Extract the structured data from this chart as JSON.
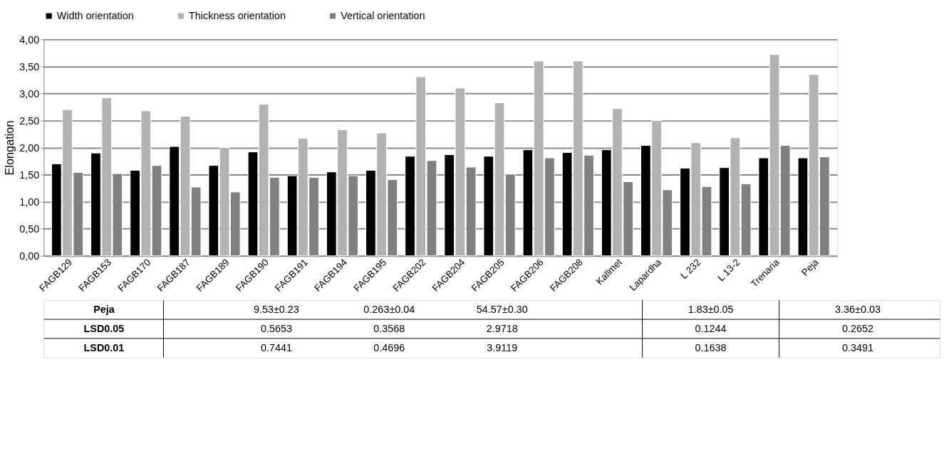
{
  "chart_data": {
    "type": "bar",
    "ylabel": "Elongation",
    "categories": [
      "FAGB129",
      "FAGB153",
      "FAGB170",
      "FAGB187",
      "FAGB189",
      "FAGB190",
      "FAGB191",
      "FAGB194",
      "FAGB195",
      "FAGB202",
      "FAGB204",
      "FAGB205",
      "FAGB206",
      "FAGB208",
      "Kallmet",
      "Lapardha",
      "L 232",
      "L 13-2",
      "Trenaria",
      "Peja"
    ],
    "series": [
      {
        "name": "Width orientation",
        "color": "#000000",
        "values": [
          1.7,
          1.9,
          1.58,
          2.02,
          1.67,
          1.92,
          1.48,
          1.55,
          1.58,
          1.84,
          1.87,
          1.84,
          1.96,
          1.91,
          1.96,
          2.04,
          1.62,
          1.63,
          1.81,
          1.81
        ]
      },
      {
        "name": "Thickness orientation",
        "color": "#b2b2b2",
        "values": [
          2.7,
          2.92,
          2.68,
          2.58,
          2.0,
          2.8,
          2.17,
          2.33,
          2.27,
          3.31,
          3.1,
          2.83,
          3.6,
          3.6,
          2.72,
          2.5,
          2.09,
          2.18,
          3.72,
          3.35
        ]
      },
      {
        "name": "Vertical orientation",
        "color": "#808080",
        "values": [
          1.54,
          1.52,
          1.67,
          1.27,
          1.18,
          1.45,
          1.45,
          1.48,
          1.41,
          1.76,
          1.64,
          1.51,
          1.81,
          1.86,
          1.37,
          1.22,
          1.28,
          1.33,
          2.04,
          1.83
        ]
      }
    ],
    "ylim": [
      0,
      4
    ],
    "yticks": [
      {
        "value": 0,
        "label": "0,00"
      },
      {
        "value": 0.5,
        "label": "0,50"
      },
      {
        "value": 1,
        "label": "1,00"
      },
      {
        "value": 1.5,
        "label": "1,50"
      },
      {
        "value": 2,
        "label": "2,00"
      },
      {
        "value": 2.5,
        "label": "2,50"
      },
      {
        "value": 3,
        "label": "3,00"
      },
      {
        "value": 3.5,
        "label": "3,50"
      },
      {
        "value": 4,
        "label": "4,00"
      }
    ],
    "grid": "y",
    "legend": "top",
    "annotations": [
      "Peja",
      "9.53±0.23",
      "0.263±0.04",
      "54.57±0.30",
      "1.83±0.05",
      "3.36±0.03",
      "LSD0.05",
      "0.5653",
      "0.3568",
      "2.9718",
      "0.1244",
      "0.2652",
      "LSD0.01",
      "0.7441",
      "0.4696",
      "3.9119",
      "0.1638",
      "0.3491"
    ]
  }
}
